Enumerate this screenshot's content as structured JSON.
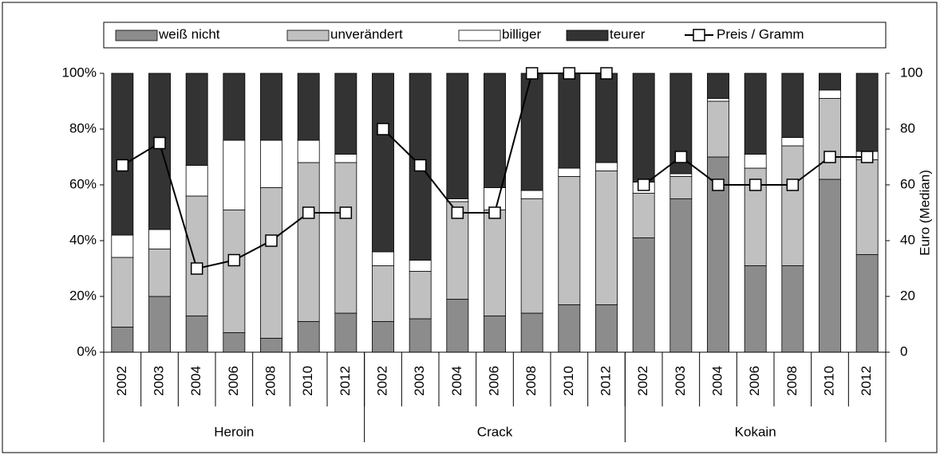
{
  "chart_data": {
    "type": "bar",
    "stacked": true,
    "categories": [
      "2002",
      "2003",
      "2004",
      "2006",
      "2008",
      "2010",
      "2012",
      "2002",
      "2003",
      "2004",
      "2006",
      "2008",
      "2010",
      "2012",
      "2002",
      "2003",
      "2004",
      "2006",
      "2008",
      "2010",
      "2012"
    ],
    "groups": [
      {
        "label": "Heroin",
        "count": 7
      },
      {
        "label": "Crack",
        "count": 7
      },
      {
        "label": "Kokain",
        "count": 7
      }
    ],
    "series": [
      {
        "name": "weiß nicht",
        "color": "#8c8c8c",
        "values": [
          9,
          20,
          13,
          7,
          5,
          11,
          14,
          11,
          12,
          19,
          13,
          14,
          17,
          17,
          41,
          55,
          70,
          31,
          31,
          62,
          35
        ]
      },
      {
        "name": "unverändert",
        "color": "#c0c0c0",
        "values": [
          25,
          17,
          43,
          44,
          54,
          57,
          54,
          20,
          17,
          35,
          38,
          41,
          46,
          48,
          16,
          8,
          20,
          35,
          43,
          29,
          34
        ]
      },
      {
        "name": "billiger",
        "color": "#ffffff",
        "values": [
          8,
          7,
          11,
          25,
          17,
          8,
          3,
          5,
          4,
          1,
          8,
          3,
          3,
          3,
          4,
          1,
          1,
          5,
          3,
          3,
          3
        ]
      },
      {
        "name": "teurer",
        "color": "#333333",
        "values": [
          58,
          56,
          33,
          24,
          24,
          24,
          29,
          64,
          67,
          45,
          41,
          42,
          34,
          32,
          39,
          36,
          9,
          29,
          23,
          6,
          28
        ]
      },
      {
        "name": "Preis / Gramm",
        "type": "line",
        "axis": "y2",
        "color": "#000000",
        "values": [
          67,
          75,
          30,
          33,
          40,
          50,
          50,
          80,
          67,
          50,
          50,
          100,
          100,
          100,
          60,
          70,
          60,
          60,
          60,
          70,
          70
        ]
      }
    ],
    "ylim": [
      0,
      100
    ],
    "yticks": [
      {
        "value": 0,
        "label": "0%"
      },
      {
        "value": 20,
        "label": "20%"
      },
      {
        "value": 40,
        "label": "40%"
      },
      {
        "value": 60,
        "label": "60%"
      },
      {
        "value": 80,
        "label": "80%"
      },
      {
        "value": 100,
        "label": "100%"
      }
    ],
    "y2lim": [
      0,
      100
    ],
    "y2ticks": [
      0,
      20,
      40,
      60,
      80,
      100
    ],
    "y2label": "Euro (Median)",
    "legend": "top"
  }
}
